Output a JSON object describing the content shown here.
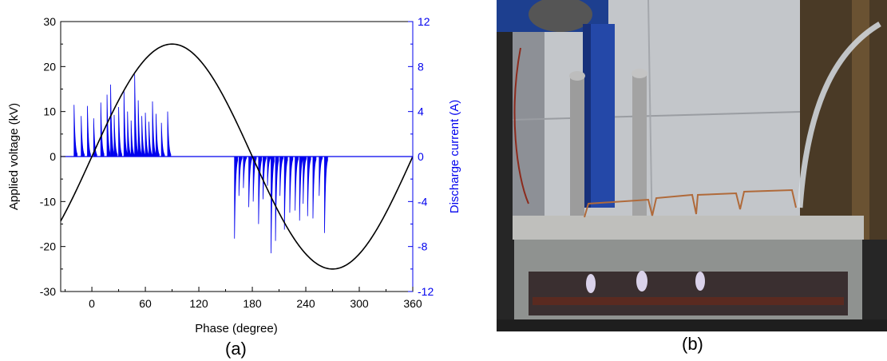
{
  "panels": {
    "a_caption": "(a)",
    "b_caption": "(b)"
  },
  "chart_data": {
    "type": "line",
    "x_axis": {
      "label": "Phase (degree)",
      "range": [
        -35,
        360
      ],
      "ticks": [
        0,
        60,
        120,
        180,
        240,
        300,
        360
      ]
    },
    "y_axis_left": {
      "label": "Applied voltage (kV)",
      "range": [
        -30,
        30
      ],
      "ticks": [
        -30,
        -20,
        -10,
        0,
        10,
        20,
        30
      ]
    },
    "y_axis_right": {
      "label": "Discharge current (A)",
      "range": [
        -12,
        12
      ],
      "ticks": [
        -12,
        -8,
        -4,
        0,
        4,
        8,
        12
      ],
      "color": "#0000ee"
    },
    "series": [
      {
        "axis": "left",
        "color": "#000000",
        "function": "sine",
        "amplitude": 25,
        "x": [
          -35,
          -15,
          0,
          30,
          60,
          90,
          120,
          150,
          180,
          210,
          240,
          270,
          300,
          330,
          360
        ],
        "y": [
          -14.3,
          -6.5,
          0,
          12.5,
          21.7,
          25,
          21.7,
          12.5,
          0,
          -12.5,
          -21.7,
          -25,
          -21.7,
          -12.5,
          0
        ]
      },
      {
        "axis": "right",
        "color": "#0000ee",
        "type": "spikes",
        "decay_degrees": 3.5,
        "x": [
          -20,
          -12,
          -5,
          2,
          10,
          17,
          21,
          25,
          30,
          36,
          40,
          44,
          48,
          52,
          56,
          60,
          64,
          68,
          72,
          78,
          85
        ],
        "y": [
          4.6,
          3.6,
          4.5,
          3.4,
          4.8,
          5.5,
          6.4,
          3.7,
          4.4,
          5.8,
          4.0,
          3.2,
          7.3,
          5.0,
          3.6,
          3.9,
          3.1,
          4.9,
          3.8,
          3.0,
          4.0
        ]
      },
      {
        "axis": "right",
        "color": "#0000ee",
        "type": "spikes",
        "decay_degrees": 3.5,
        "x": [
          160,
          165,
          170,
          176,
          181,
          187,
          192,
          197,
          201,
          206,
          211,
          216,
          222,
          228,
          233,
          237,
          242,
          248,
          255,
          261
        ],
        "y": [
          -7.3,
          -3.5,
          -2.8,
          -4.5,
          -4.0,
          -6.0,
          -3.8,
          -2.6,
          -8.6,
          -7.5,
          -3.5,
          -6.5,
          -5.0,
          -4.8,
          -5.7,
          -4.2,
          -5.3,
          -5.5,
          -3.5,
          -6.8
        ]
      }
    ]
  },
  "photo": {
    "background": "#2a2a2a",
    "wall_color": "#c9ccd0",
    "reactor_color": "#b8b8b8",
    "cable_color": "#2448a8",
    "rod_color": "#9c9c9c",
    "plasma_color": "#e8e0ff"
  }
}
